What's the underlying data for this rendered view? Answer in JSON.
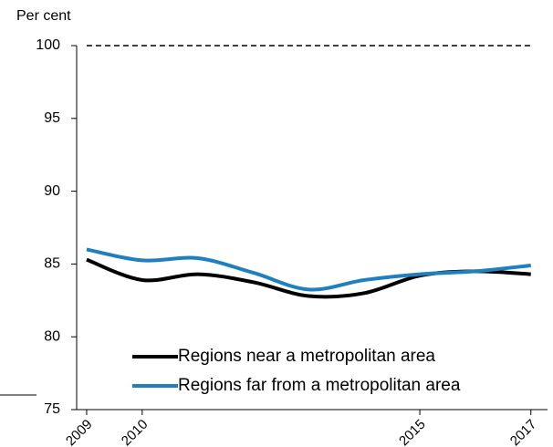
{
  "chart_data": {
    "type": "line",
    "y_label": "Per cent",
    "x": [
      2009,
      2010,
      2011,
      2012,
      2013,
      2014,
      2015,
      2016,
      2017
    ],
    "series": [
      {
        "name": "Regions near a metropolitan area",
        "color": "#000000",
        "values": [
          85.3,
          83.9,
          84.3,
          83.75,
          82.8,
          83.0,
          84.2,
          84.5,
          84.3
        ]
      },
      {
        "name": "Regions far from a metropolitan area",
        "color": "#1f7fbf",
        "values": [
          86.0,
          85.25,
          85.4,
          84.4,
          83.25,
          83.9,
          84.3,
          84.5,
          84.9
        ]
      }
    ],
    "reference_line": 100,
    "xlim": [
      2008.82,
      2017.3
    ],
    "xticks": [
      2009,
      2010,
      2015,
      2017
    ],
    "ylim": [
      75,
      100
    ],
    "yticks": [
      75,
      80,
      85,
      90,
      95,
      100
    ],
    "legend": "bottom"
  }
}
